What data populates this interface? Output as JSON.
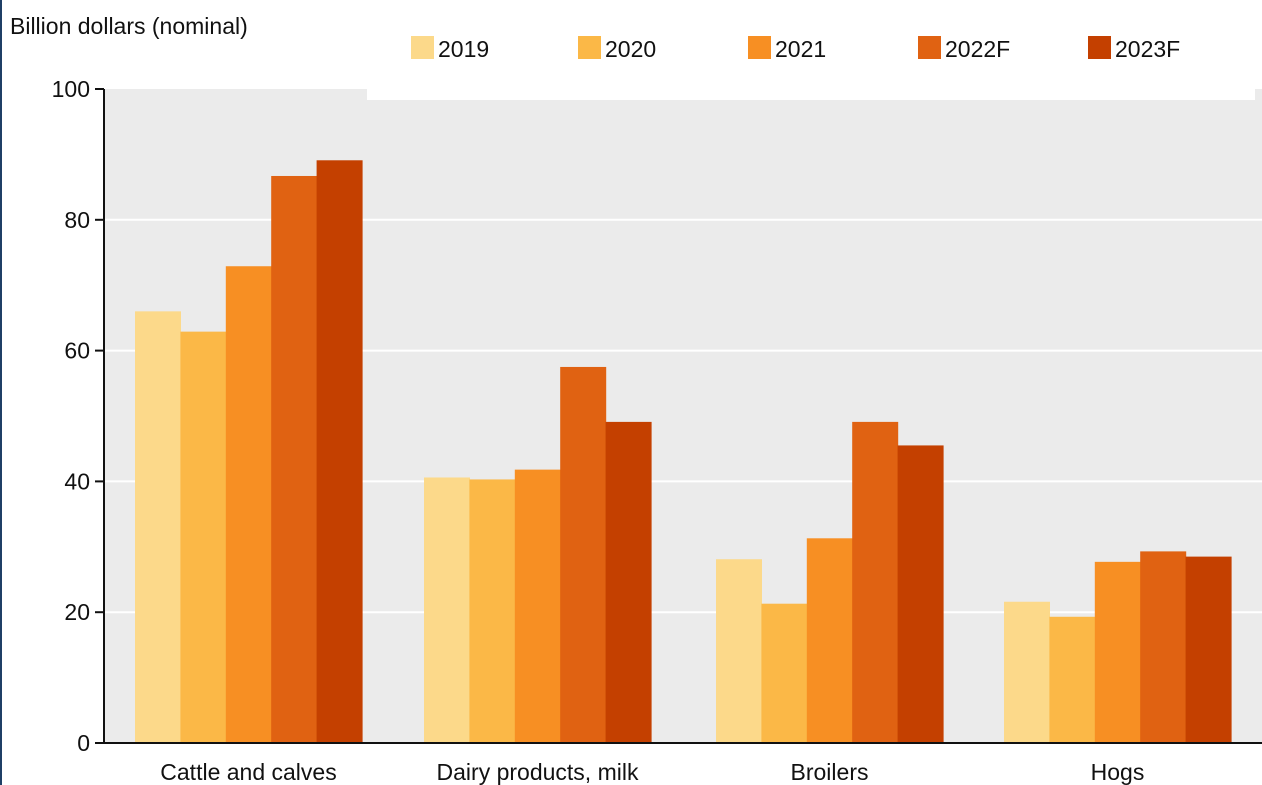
{
  "chart_data": {
    "type": "bar",
    "title": "",
    "ylabel": "Billion dollars (nominal)",
    "xlabel": "",
    "ylim": [
      0,
      100
    ],
    "yticks": [
      0,
      20,
      40,
      60,
      80,
      100
    ],
    "grid": true,
    "legend_position": "top",
    "categories": [
      "Cattle and calves",
      "Dairy products, milk",
      "Broilers",
      "Hogs"
    ],
    "series": [
      {
        "name": "2019",
        "color": "#fcd98a",
        "values": [
          66.0,
          40.6,
          28.1,
          21.6
        ]
      },
      {
        "name": "2020",
        "color": "#fbb847",
        "values": [
          62.9,
          40.3,
          21.3,
          19.3
        ]
      },
      {
        "name": "2021",
        "color": "#f78f23",
        "values": [
          72.9,
          41.8,
          31.3,
          27.7
        ]
      },
      {
        "name": "2022F",
        "color": "#e06212",
        "values": [
          86.7,
          57.5,
          49.1,
          29.3
        ]
      },
      {
        "name": "2023F",
        "color": "#c44000",
        "values": [
          89.1,
          49.1,
          45.5,
          28.5
        ]
      }
    ],
    "colors": {
      "plot_background": "#ebebeb",
      "gridline": "#ffffff",
      "axis": "#111111"
    }
  }
}
